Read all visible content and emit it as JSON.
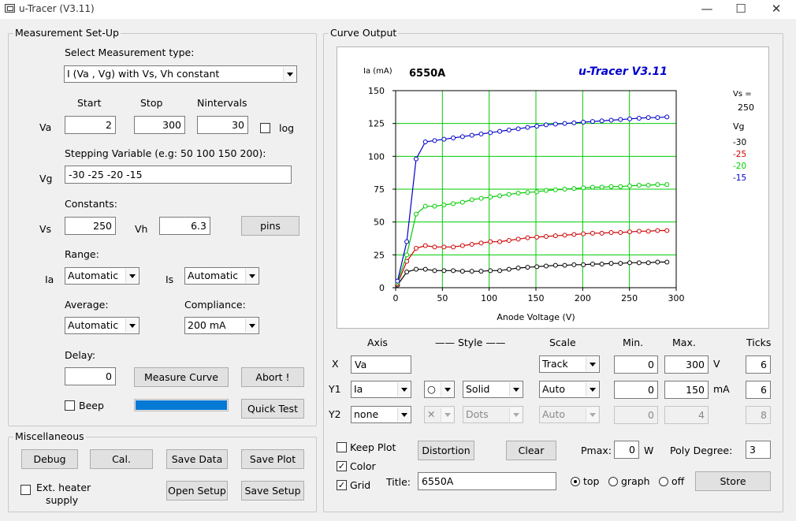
{
  "window": {
    "title": "u-Tracer (V3.11)",
    "minimize": "—",
    "maximize": "☐",
    "close": "✕"
  },
  "setup": {
    "group_title": "Measurement Set-Up",
    "type_label": "Select Measurement type:",
    "type_value": "I (Va , Vg) with Vs, Vh constant",
    "col_start": "Start",
    "col_stop": "Stop",
    "col_nintervals": "Nintervals",
    "va_label": "Va",
    "va_start": "2",
    "va_stop": "300",
    "va_nint": "30",
    "log_label": "log",
    "stepping_label": "Stepping Variable (e.g: 50 100 150 200):",
    "vg_label": "Vg",
    "vg_value": "-30 -25 -20 -15",
    "constants_label": "Constants:",
    "vs_label": "Vs",
    "vs_value": "250",
    "vh_label": "Vh",
    "vh_value": "6.3",
    "pins_button": "pins",
    "range_label": "Range:",
    "ia_label": "Ia",
    "ia_range": "Automatic",
    "is_label": "Is",
    "is_range": "Automatic",
    "average_label": "Average:",
    "average_value": "Automatic",
    "compliance_label": "Compliance:",
    "compliance_value": "200 mA",
    "delay_label": "Delay:",
    "delay_value": "0",
    "measure_button": "Measure Curve",
    "abort_button": "Abort !",
    "beep_label": "Beep",
    "progress": 1.0,
    "quicktest_button": "Quick Test"
  },
  "misc": {
    "group_title": "Miscellaneous",
    "debug": "Debug",
    "cal": "Cal.",
    "save_data": "Save Data",
    "save_plot": "Save Plot",
    "ext_heater_line1": "Ext. heater",
    "ext_heater_line2": "supply",
    "open_setup": "Open Setup",
    "save_setup": "Save Setup"
  },
  "curve": {
    "group_title": "Curve Output",
    "hdr_axis": "Axis",
    "hdr_style": "—— Style ——",
    "hdr_scale": "Scale",
    "hdr_min": "Min.",
    "hdr_max": "Max.",
    "hdr_ticks": "Ticks",
    "x": {
      "label": "X",
      "var": "Va",
      "scale": "Track",
      "min": "0",
      "max": "300",
      "unit": "V",
      "ticks": "6"
    },
    "y1": {
      "label": "Y1",
      "var": "Ia",
      "marker": "○",
      "style": "Solid",
      "scale": "Auto",
      "min": "0",
      "max": "150",
      "unit": "mA",
      "ticks": "6"
    },
    "y2": {
      "label": "Y2",
      "var": "none",
      "marker": "✕",
      "style": "Dots",
      "scale": "Auto",
      "min": "0",
      "max": "4",
      "ticks": "8"
    },
    "keep_plot": "Keep Plot",
    "distortion": "Distortion",
    "clear": "Clear",
    "pmax_label": "Pmax:",
    "pmax_value": "0",
    "pmax_unit": "W",
    "poly_label": "Poly Degree:",
    "poly_value": "3",
    "color_label": "Color",
    "grid_label": "Grid",
    "title_label": "Title:",
    "title_value": "6550A",
    "pos_top": "top",
    "pos_graph": "graph",
    "pos_off": "off",
    "store": "Store"
  },
  "chart_data": {
    "type": "line",
    "title": "6550A",
    "subtitle": "u-Tracer V3.11",
    "xlabel": "Anode Voltage (V)",
    "ylabel": "Ia (mA)",
    "xlim": [
      0,
      300
    ],
    "ylim": [
      0,
      150
    ],
    "xticks": [
      0,
      50,
      100,
      150,
      200,
      250,
      300
    ],
    "yticks": [
      0,
      25,
      50,
      75,
      100,
      125,
      150
    ],
    "grid": true,
    "legend_placement": "right",
    "legend_header": [
      "Vs =",
      "250",
      "Vg"
    ],
    "x": [
      2,
      11.9,
      21.9,
      31.8,
      41.7,
      51.7,
      61.6,
      71.5,
      81.5,
      91.4,
      101.3,
      111.3,
      121.2,
      131.1,
      141.1,
      151,
      160.9,
      170.9,
      180.8,
      190.7,
      200.7,
      210.6,
      220.5,
      230.5,
      240.4,
      250.3,
      260.3,
      270.2,
      280.1,
      290.1
    ],
    "series": [
      {
        "name": "-30",
        "color": "#000000",
        "values": [
          2,
          12,
          14,
          14,
          13,
          13,
          13,
          12.5,
          12.5,
          12.5,
          13,
          13,
          14,
          15,
          15.5,
          16,
          16.5,
          17,
          17,
          17.5,
          17.5,
          18,
          18,
          18.5,
          18.5,
          19,
          19,
          19,
          19.5,
          19.5
        ]
      },
      {
        "name": "-25",
        "color": "#cc0000",
        "values": [
          3,
          20,
          30,
          32,
          31,
          31,
          31,
          32,
          33,
          34,
          35,
          35,
          36,
          37,
          38,
          38.5,
          39,
          39.5,
          40,
          40.5,
          41,
          41.5,
          41.5,
          42,
          42,
          42.5,
          43,
          43,
          43.5,
          43.5
        ]
      },
      {
        "name": "-20",
        "color": "#00cc00",
        "values": [
          4,
          25,
          56,
          62,
          62,
          63,
          64,
          65,
          67,
          68,
          69,
          70,
          71,
          72,
          72.5,
          73,
          74,
          74.5,
          75,
          75.5,
          76,
          76.5,
          76.5,
          77,
          77,
          77.5,
          78,
          78,
          78.5,
          78.5
        ]
      },
      {
        "name": "-15",
        "color": "#0000cc",
        "values": [
          5,
          35,
          98,
          111,
          112,
          113,
          114,
          115,
          116,
          117,
          118,
          119,
          120,
          121,
          122,
          123,
          124,
          124.5,
          125,
          125.5,
          126,
          126.5,
          127,
          127.5,
          128,
          128.5,
          129,
          129.5,
          129.5,
          130
        ]
      }
    ]
  }
}
